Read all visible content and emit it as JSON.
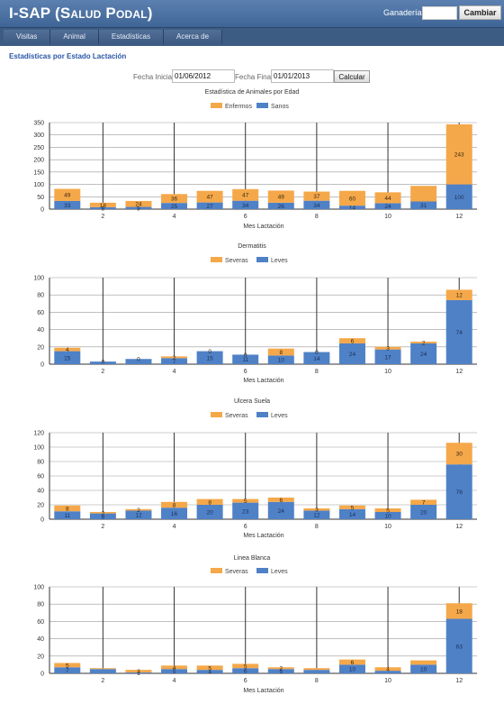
{
  "app": {
    "title_main": "I-SAP",
    "title_sub": "(Salud Podal)"
  },
  "header": {
    "ganaderia_label": "Ganadería",
    "ganaderia_value": "",
    "change_button": "Cambiar"
  },
  "nav": {
    "items": [
      "Visitas",
      "Animal",
      "Estadísticas",
      "Acerca de"
    ]
  },
  "page": {
    "section_title": "Estadísticas por Estado Lactación"
  },
  "filters": {
    "start_label": "Fecha Inicial:",
    "start_value": "01/06/2012",
    "end_label": "Fecha Final:",
    "end_value": "01/01/2013",
    "calc_button": "Calcular"
  },
  "colors": {
    "primary_series": "#f5a84a",
    "secondary_series": "#4f81c7"
  },
  "chart_data": [
    {
      "type": "bar",
      "title": "Estadística de Animales por Edad",
      "xlabel": "Mes Lactación",
      "x_ticks": [
        "2",
        "4",
        "6",
        "8",
        "10",
        "12"
      ],
      "ylim": [
        0,
        350
      ],
      "y_ticks": [
        0,
        50,
        100,
        150,
        200,
        250,
        300,
        350
      ],
      "categories": [
        "1",
        "2",
        "3",
        "4",
        "5",
        "6",
        "7",
        "8",
        "9",
        "10",
        "11",
        "12"
      ],
      "series": [
        {
          "name": "Sanos",
          "values": [
            33,
            8,
            9,
            25,
            27,
            34,
            26,
            34,
            14,
            24,
            31,
            100
          ],
          "labels": [
            "33",
            "8",
            "9",
            "25",
            "27",
            "34",
            "26",
            "34",
            "14",
            "24",
            "31",
            "100"
          ]
        },
        {
          "name": "Enfermos",
          "values": [
            49,
            18,
            24,
            36,
            47,
            47,
            49,
            37,
            60,
            44,
            63,
            243
          ],
          "labels": [
            "49",
            "18",
            "24",
            "36",
            "47",
            "47",
            "49",
            "37",
            "60",
            "44",
            "",
            "243"
          ]
        }
      ]
    },
    {
      "type": "bar",
      "title": "Dermatitis",
      "xlabel": "Mes Lactación",
      "x_ticks": [
        "2",
        "4",
        "6",
        "8",
        "10",
        "12"
      ],
      "ylim": [
        0,
        100
      ],
      "y_ticks": [
        0,
        20,
        40,
        60,
        80,
        100
      ],
      "categories": [
        "1",
        "2",
        "3",
        "4",
        "5",
        "6",
        "7",
        "8",
        "9",
        "10",
        "11",
        "12"
      ],
      "series": [
        {
          "name": "Leves",
          "values": [
            15,
            3,
            6,
            7,
            15,
            11,
            10,
            14,
            24,
            17,
            24,
            74
          ],
          "labels": [
            "15",
            "",
            "",
            "7",
            "15",
            "11",
            "10",
            "14",
            "24",
            "17",
            "24",
            "74"
          ]
        },
        {
          "name": "Severas",
          "values": [
            4,
            0,
            0,
            2,
            0,
            0,
            8,
            0,
            6,
            3,
            2,
            12
          ],
          "labels": [
            "4",
            "0",
            "0",
            "2",
            "0",
            "0",
            "8",
            "0",
            "6",
            "3",
            "2",
            "12"
          ]
        }
      ]
    },
    {
      "type": "bar",
      "title": "Ulcera Suela",
      "xlabel": "Mes Lactación",
      "x_ticks": [
        "2",
        "4",
        "6",
        "8",
        "10",
        "12"
      ],
      "ylim": [
        0,
        120
      ],
      "y_ticks": [
        0,
        20,
        40,
        60,
        80,
        100,
        120
      ],
      "categories": [
        "1",
        "2",
        "3",
        "4",
        "5",
        "6",
        "7",
        "8",
        "9",
        "10",
        "11",
        "12"
      ],
      "series": [
        {
          "name": "Leves",
          "values": [
            11,
            8,
            12,
            16,
            20,
            23,
            24,
            12,
            14,
            10,
            20,
            76
          ],
          "labels": [
            "11",
            "8",
            "12",
            "16",
            "20",
            "23",
            "24",
            "12",
            "14",
            "10",
            "20",
            "76"
          ]
        },
        {
          "name": "Severas",
          "values": [
            8,
            2,
            2,
            8,
            8,
            5,
            6,
            3,
            5,
            5,
            7,
            30
          ],
          "labels": [
            "8",
            "2",
            "2",
            "8",
            "8",
            "5",
            "6",
            "3",
            "5",
            "5",
            "7",
            "30"
          ]
        }
      ]
    },
    {
      "type": "bar",
      "title": "Linea Blanca",
      "xlabel": "Mes Lactación",
      "x_ticks": [
        "2",
        "4",
        "6",
        "8",
        "10",
        "12"
      ],
      "ylim": [
        0,
        100
      ],
      "y_ticks": [
        0,
        20,
        40,
        60,
        80,
        100
      ],
      "categories": [
        "1",
        "2",
        "3",
        "4",
        "5",
        "6",
        "7",
        "8",
        "9",
        "10",
        "11",
        "12"
      ],
      "series": [
        {
          "name": "Leves",
          "values": [
            7,
            5,
            1,
            5,
            4,
            6,
            5,
            4,
            10,
            3,
            10,
            63
          ],
          "labels": [
            "7",
            "",
            "1",
            "5",
            "4",
            "6",
            "5",
            "",
            "10",
            "",
            "10",
            "63"
          ]
        },
        {
          "name": "Severas",
          "values": [
            5,
            1,
            3,
            4,
            5,
            5,
            2,
            2,
            6,
            4,
            5,
            18
          ],
          "labels": [
            "5",
            "",
            "3",
            "4",
            "5",
            "5",
            "2",
            "",
            "6",
            "4",
            "",
            "18"
          ]
        }
      ]
    }
  ]
}
